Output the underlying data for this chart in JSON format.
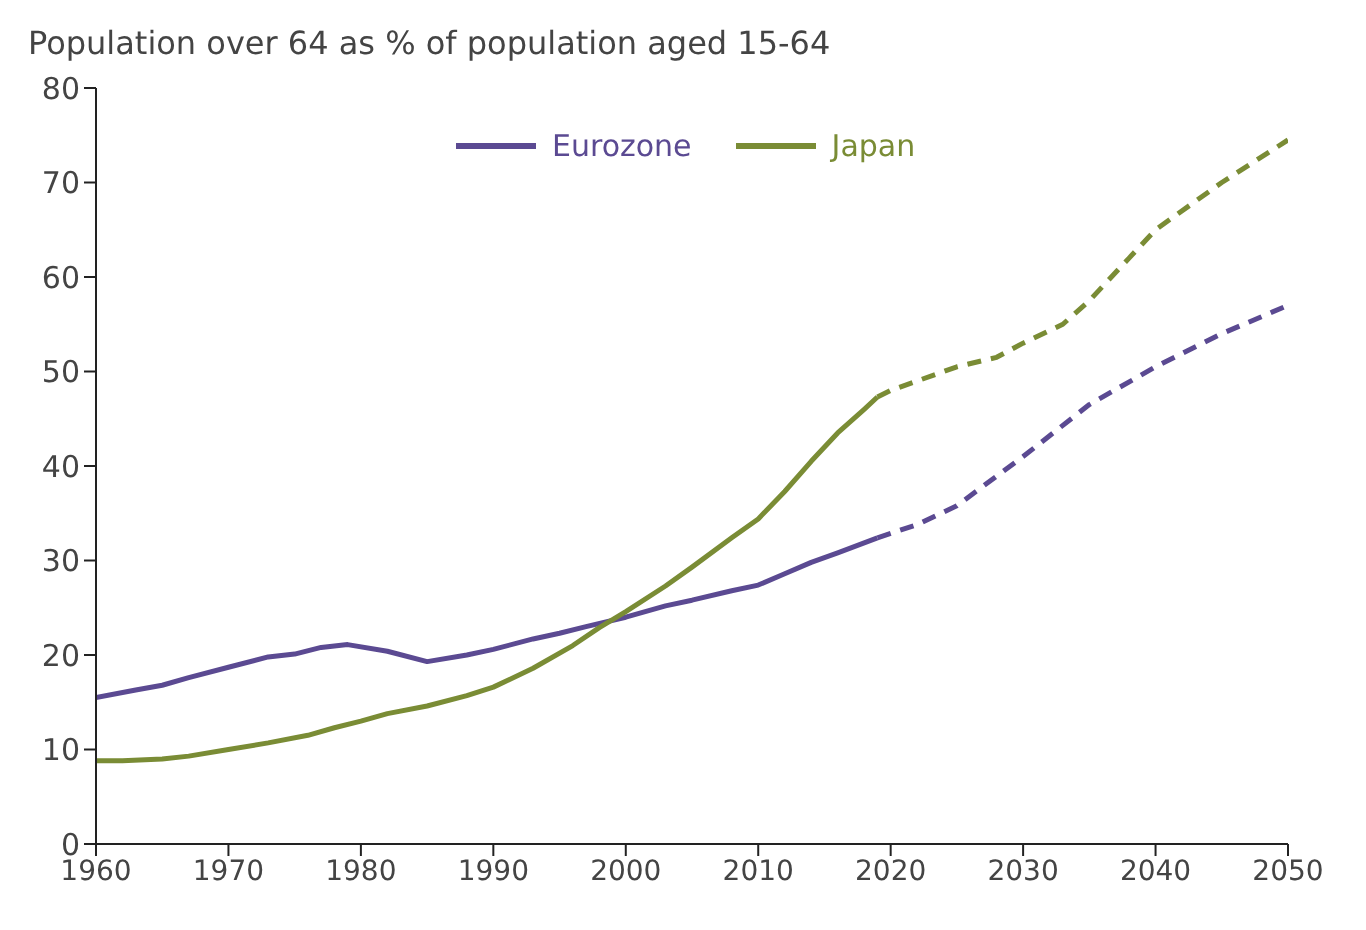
{
  "chart_data": {
    "type": "line",
    "title": "Population over 64 as % of population aged 15-64",
    "xlim": [
      1960,
      2050
    ],
    "xticks": [
      1960,
      1970,
      1980,
      1990,
      2000,
      2010,
      2020,
      2030,
      2040,
      2050
    ],
    "ylim": [
      0,
      80
    ],
    "yticks": [
      0,
      10,
      20,
      30,
      40,
      50,
      60,
      70,
      80
    ],
    "legend": "top",
    "marker": "none",
    "series": [
      {
        "name": "Eurozone",
        "color": "#5b4a92",
        "line_style": "solid",
        "x": [
          1960,
          1963,
          1965,
          1967,
          1970,
          1973,
          1975,
          1977,
          1979,
          1982,
          1985,
          1988,
          1990,
          1993,
          1995,
          1997,
          2000,
          2003,
          2005,
          2008,
          2010,
          2012,
          2014,
          2016,
          2019
        ],
        "values": [
          15.5,
          16.3,
          16.8,
          17.6,
          18.7,
          19.8,
          20.1,
          20.8,
          21.1,
          20.4,
          19.3,
          20,
          20.6,
          21.7,
          22.3,
          23,
          24,
          25.2,
          25.8,
          26.8,
          27.4,
          28.6,
          29.8,
          30.8,
          32.4
        ]
      },
      {
        "color": "#5b4a92",
        "line_style": "dashed",
        "x": [
          2019,
          2022,
          2025,
          2030,
          2035,
          2040,
          2045,
          2050
        ],
        "values": [
          32.4,
          33.8,
          35.8,
          41,
          46.5,
          50.5,
          54,
          57
        ]
      },
      {
        "name": "Japan",
        "color": "#7a8c35",
        "line_style": "solid",
        "x": [
          1960,
          1962,
          1965,
          1967,
          1970,
          1973,
          1976,
          1978,
          1980,
          1982,
          1985,
          1988,
          1990,
          1993,
          1996,
          1998,
          2000,
          2003,
          2005,
          2008,
          2010,
          2012,
          2014,
          2016,
          2018,
          2019
        ],
        "values": [
          8.8,
          8.8,
          9,
          9.3,
          10,
          10.7,
          11.5,
          12.3,
          13,
          13.8,
          14.6,
          15.7,
          16.6,
          18.6,
          21,
          22.9,
          24.6,
          27.3,
          29.3,
          32.4,
          34.4,
          37.3,
          40.5,
          43.5,
          46,
          47.3
        ]
      },
      {
        "color": "#7a8c35",
        "line_style": "dashed",
        "x": [
          2019,
          2020,
          2025,
          2028,
          2030,
          2033,
          2035,
          2038,
          2040,
          2045,
          2050
        ],
        "values": [
          47.3,
          48,
          50.5,
          51.5,
          53,
          55,
          57.5,
          62,
          65,
          70,
          74.5
        ]
      }
    ]
  }
}
